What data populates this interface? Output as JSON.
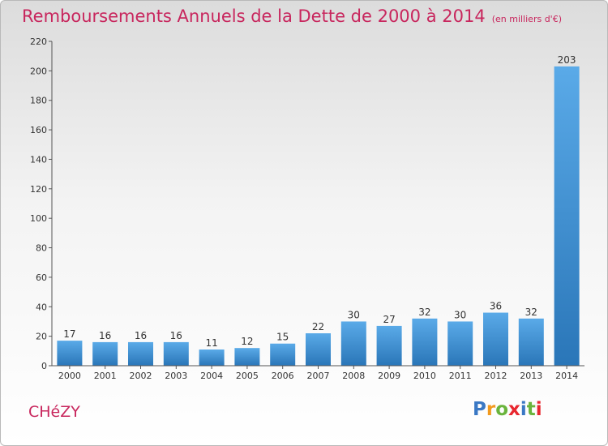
{
  "title": "Remboursements Annuels de la Dette de 2000 à 2014",
  "subtitle": "(en milliers d'€)",
  "town": "CHéZY",
  "logo": {
    "text": "Proxiti",
    "letter_colors": [
      "#3a78c4",
      "#f29a1e",
      "#6ab43c",
      "#e8272f",
      "#3a78c4",
      "#6ab43c",
      "#e8272f"
    ]
  },
  "colors": {
    "title": "#c8265d",
    "bar_light": "#5aaae8",
    "bar_dark": "#2a76b8"
  },
  "chart_data": {
    "type": "bar",
    "title": "Remboursements Annuels de la Dette de 2000 à 2014",
    "subtitle": "(en milliers d'€)",
    "categories": [
      "2000",
      "2001",
      "2002",
      "2003",
      "2004",
      "2005",
      "2006",
      "2007",
      "2008",
      "2009",
      "2010",
      "2011",
      "2012",
      "2013",
      "2014"
    ],
    "values": [
      17,
      16,
      16,
      16,
      11,
      12,
      15,
      22,
      30,
      27,
      32,
      30,
      36,
      32,
      203
    ],
    "ylim": [
      0,
      220
    ],
    "yticks": [
      0,
      20,
      40,
      60,
      80,
      100,
      120,
      140,
      160,
      180,
      200,
      220
    ],
    "grid": false,
    "legend": "none"
  }
}
